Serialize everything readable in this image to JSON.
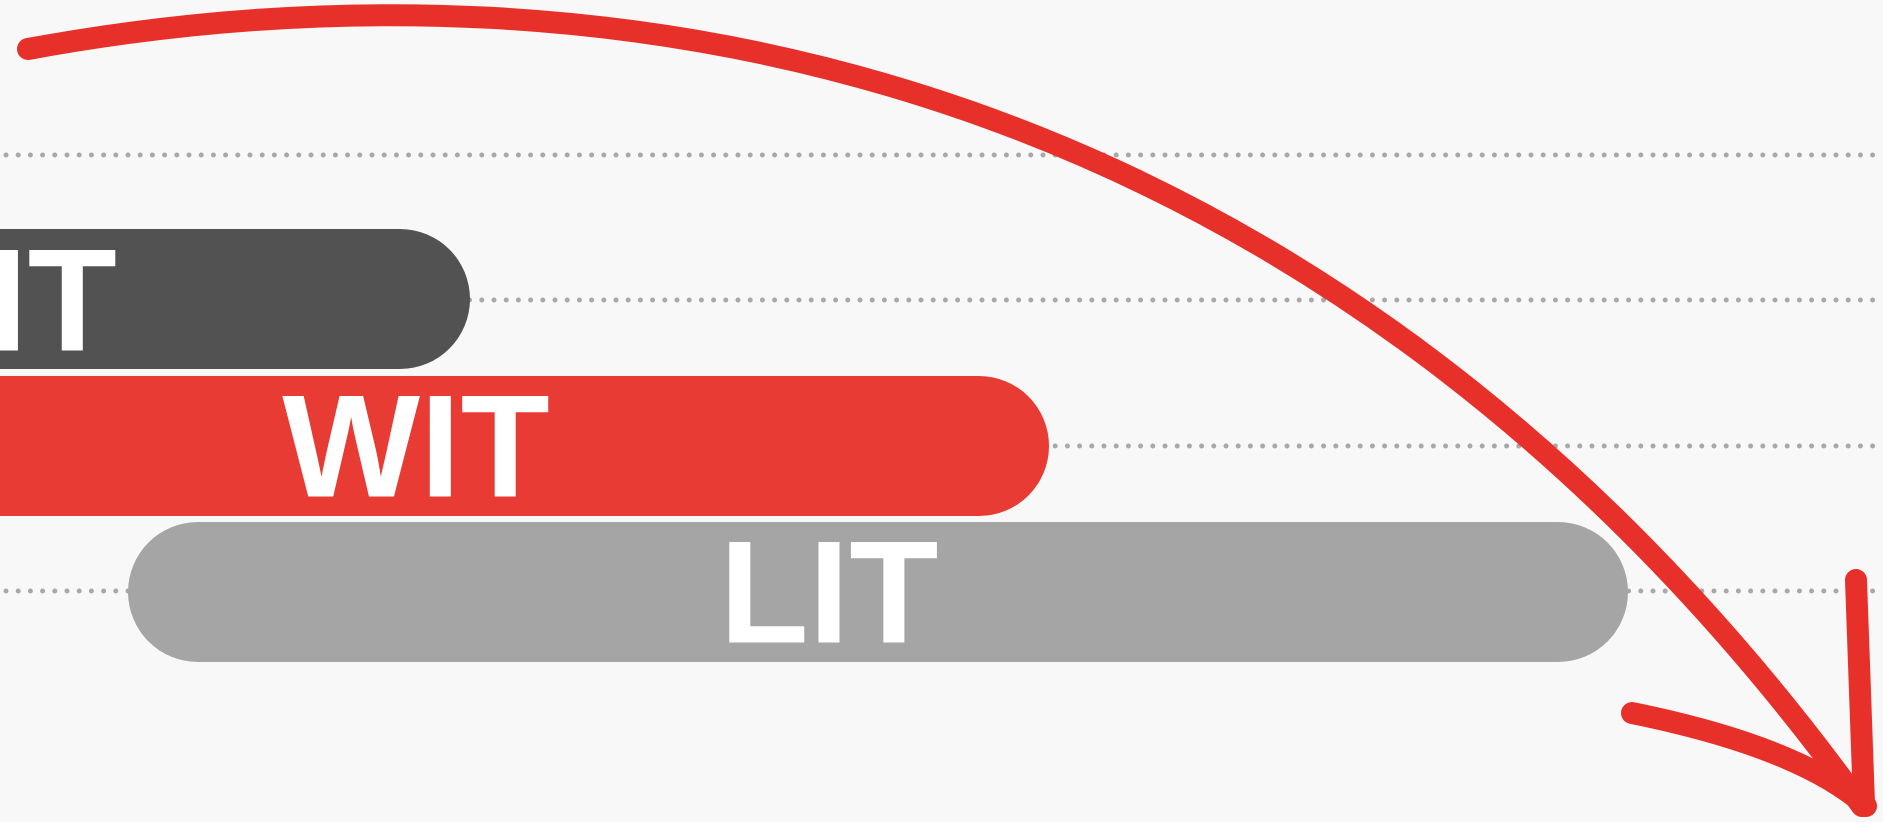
{
  "bars": [
    {
      "label": "IT"
    },
    {
      "label": "WIT"
    },
    {
      "label": "LIT"
    }
  ]
}
